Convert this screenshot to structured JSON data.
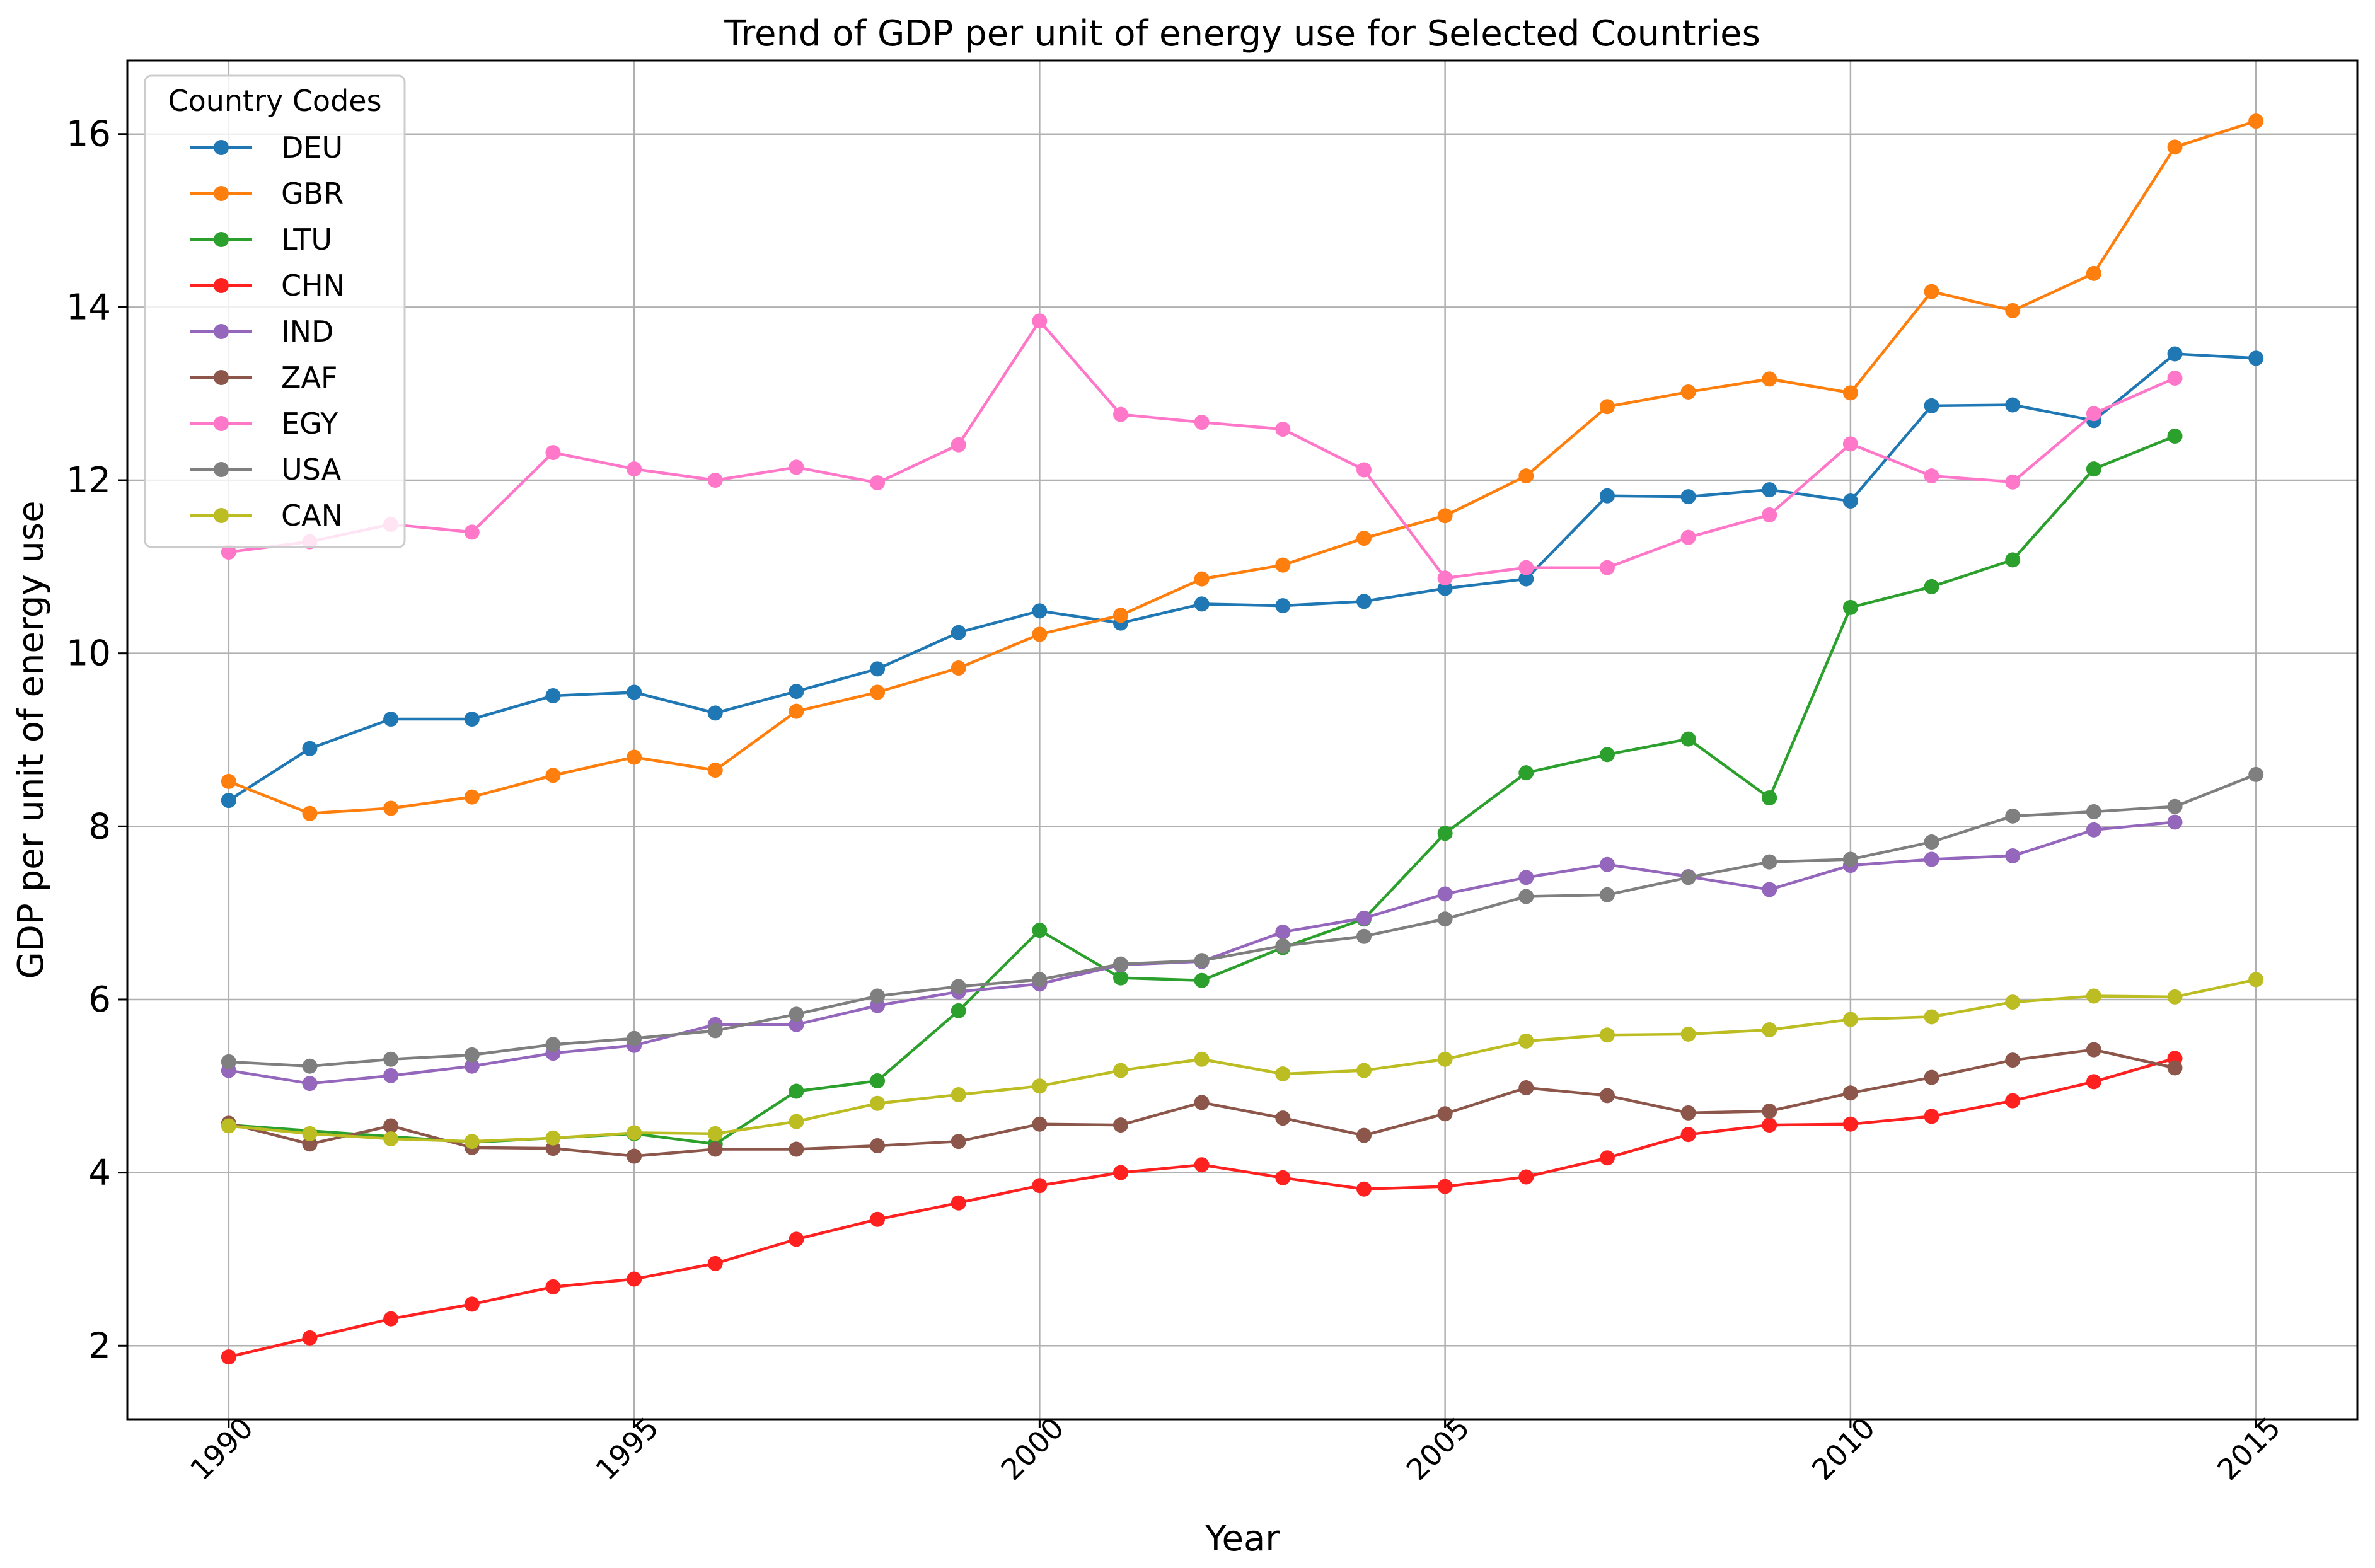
{
  "chart_data": {
    "type": "line",
    "title": "Trend of GDP per unit of energy use for Selected Countries",
    "xlabel": "Year",
    "ylabel": "GDP per unit of energy use",
    "xlim": [
      1988.75,
      2016.25
    ],
    "ylim": [
      1.15,
      16.85
    ],
    "xticks": [
      1990,
      1995,
      2000,
      2005,
      2010,
      2015
    ],
    "yticks": [
      2,
      4,
      6,
      8,
      10,
      12,
      14,
      16
    ],
    "grid": true,
    "legend": {
      "title": "Country Codes",
      "placement": "top-left"
    },
    "x": [
      1990,
      1991,
      1992,
      1993,
      1994,
      1995,
      1996,
      1997,
      1998,
      1999,
      2000,
      2001,
      2002,
      2003,
      2004,
      2005,
      2006,
      2007,
      2008,
      2009,
      2010,
      2011,
      2012,
      2013,
      2014,
      2015
    ],
    "series": [
      {
        "name": "DEU",
        "color": "#1f77b4",
        "values": [
          8.3,
          8.9,
          9.24,
          9.24,
          9.51,
          9.55,
          9.31,
          9.56,
          9.82,
          10.24,
          10.49,
          10.35,
          10.57,
          10.55,
          10.6,
          10.75,
          10.86,
          11.82,
          11.81,
          11.89,
          11.76,
          12.86,
          12.87,
          12.69,
          13.46,
          13.41
        ]
      },
      {
        "name": "GBR",
        "color": "#ff7f0e",
        "values": [
          8.52,
          8.15,
          8.21,
          8.34,
          8.59,
          8.8,
          8.65,
          9.33,
          9.55,
          9.83,
          10.22,
          10.44,
          10.86,
          11.02,
          11.33,
          11.59,
          12.05,
          12.85,
          13.02,
          13.17,
          13.01,
          14.18,
          13.96,
          14.39,
          15.85,
          16.15
        ]
      },
      {
        "name": "LTU",
        "color": "#2ca02c",
        "values": [
          4.55,
          null,
          null,
          4.35,
          null,
          4.45,
          4.33,
          4.94,
          5.06,
          5.87,
          6.8,
          6.25,
          6.22,
          6.6,
          6.93,
          7.92,
          8.62,
          8.83,
          9.01,
          8.33,
          10.53,
          10.77,
          11.08,
          12.13,
          12.51,
          null
        ]
      },
      {
        "name": "CHN",
        "color": "#ff2020",
        "values": [
          1.87,
          2.09,
          2.31,
          2.48,
          2.68,
          2.77,
          2.95,
          3.23,
          3.46,
          3.65,
          3.85,
          4.0,
          4.09,
          3.94,
          3.81,
          3.84,
          3.95,
          4.17,
          4.44,
          4.55,
          4.56,
          4.65,
          4.83,
          5.05,
          5.32,
          null
        ]
      },
      {
        "name": "IND",
        "color": "#9467bd",
        "values": [
          5.18,
          5.03,
          5.12,
          5.23,
          5.38,
          5.47,
          5.71,
          5.71,
          5.93,
          6.09,
          6.18,
          6.4,
          6.44,
          6.78,
          6.94,
          7.22,
          7.41,
          7.56,
          7.42,
          7.27,
          7.55,
          7.62,
          7.66,
          7.96,
          8.05,
          null
        ]
      },
      {
        "name": "ZAF",
        "color": "#8c564b",
        "values": [
          4.57,
          4.33,
          4.54,
          4.29,
          4.28,
          4.19,
          4.27,
          4.27,
          4.31,
          4.36,
          4.56,
          4.55,
          4.81,
          4.63,
          4.43,
          4.68,
          4.98,
          4.89,
          4.69,
          4.71,
          4.92,
          5.1,
          5.3,
          5.42,
          5.21,
          null
        ]
      },
      {
        "name": "EGY",
        "color": "#ff77c8",
        "values": [
          11.17,
          11.29,
          11.49,
          11.4,
          12.32,
          12.13,
          12.0,
          12.15,
          11.97,
          12.41,
          13.84,
          12.76,
          12.67,
          12.59,
          12.12,
          10.87,
          10.99,
          10.99,
          11.34,
          11.6,
          12.42,
          12.05,
          11.98,
          12.77,
          13.18,
          null
        ]
      },
      {
        "name": "USA",
        "color": "#7f7f7f",
        "values": [
          5.28,
          5.23,
          5.31,
          5.36,
          5.48,
          5.55,
          5.64,
          5.83,
          6.04,
          6.15,
          6.23,
          6.41,
          6.45,
          6.62,
          6.73,
          6.93,
          7.19,
          7.21,
          7.41,
          7.59,
          7.62,
          7.82,
          8.12,
          8.17,
          8.23,
          8.6
        ]
      },
      {
        "name": "CAN",
        "color": "#bcbd22",
        "values": [
          4.54,
          4.45,
          4.39,
          4.36,
          4.4,
          4.46,
          4.45,
          4.59,
          4.8,
          4.9,
          5.0,
          5.18,
          5.31,
          5.14,
          5.18,
          5.31,
          5.52,
          5.59,
          5.6,
          5.65,
          5.77,
          5.8,
          5.97,
          6.04,
          6.03,
          6.23
        ]
      }
    ]
  }
}
